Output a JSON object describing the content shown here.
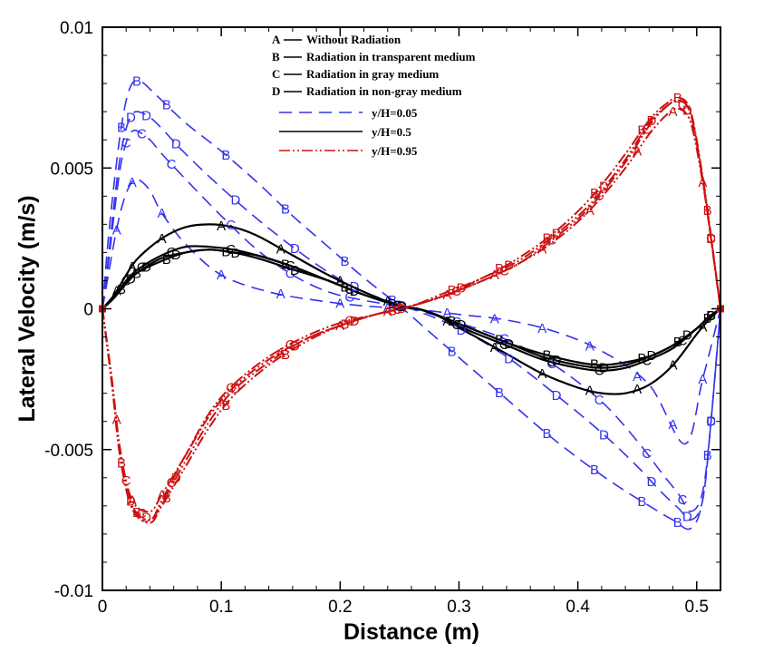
{
  "chart_data": {
    "type": "line",
    "title": "",
    "xlabel": "Distance (m)",
    "ylabel": "Lateral Velocity (m/s)",
    "xlim": [
      0,
      0.52
    ],
    "ylim": [
      -0.01,
      0.01
    ],
    "x_ticks": [
      "0",
      "0.1",
      "0.2",
      "0.3",
      "0.4",
      "0.5"
    ],
    "x_tick_values": [
      0,
      0.1,
      0.2,
      0.3,
      0.4,
      0.5
    ],
    "y_ticks": [
      "0.01",
      "0.005",
      "0",
      "-0.005",
      "-0.01"
    ],
    "y_tick_values": [
      0.01,
      0.005,
      0,
      -0.005,
      -0.01
    ],
    "legend_cases": [
      {
        "marker": "A",
        "label": "Without Radiation"
      },
      {
        "marker": "B",
        "label": "Radiation in transparent medium"
      },
      {
        "marker": "C",
        "label": "Radiation in gray medium"
      },
      {
        "marker": "D",
        "label": "Radiation in non-gray medium"
      }
    ],
    "legend_positions": [
      {
        "label": "y/H=0.05",
        "color": "#3333ee",
        "style": "dashed"
      },
      {
        "label": "y/H=0.5",
        "color": "#000000",
        "style": "solid"
      },
      {
        "label": "y/H=0.95",
        "color": "#cc1111",
        "style": "dashdot"
      }
    ],
    "series": [
      {
        "name": "A y/H=0.05",
        "group": "blue",
        "marker": "A",
        "x": [
          0,
          0.005,
          0.01,
          0.015,
          0.02,
          0.025,
          0.03,
          0.04,
          0.05,
          0.07,
          0.1,
          0.14,
          0.18,
          0.22,
          0.26,
          0.3,
          0.34,
          0.38,
          0.42,
          0.46,
          0.49,
          0.505,
          0.52
        ],
        "y": [
          0,
          0.0012,
          0.0024,
          0.0034,
          0.0041,
          0.0045,
          0.0046,
          0.0042,
          0.0034,
          0.0023,
          0.0012,
          0.0006,
          0.0003,
          0.0001,
          0,
          -0.0002,
          -0.0004,
          -0.0008,
          -0.0015,
          -0.0027,
          -0.0048,
          -0.0025,
          0
        ]
      },
      {
        "name": "B y/H=0.05",
        "group": "blue",
        "marker": "B",
        "x": [
          0,
          0.005,
          0.01,
          0.015,
          0.02,
          0.025,
          0.03,
          0.035,
          0.04,
          0.05,
          0.07,
          0.1,
          0.13,
          0.16,
          0.19,
          0.22,
          0.25,
          0.28,
          0.31,
          0.34,
          0.37,
          0.4,
          0.43,
          0.46,
          0.48,
          0.495,
          0.505,
          0.512,
          0.52
        ],
        "y": [
          0,
          0.0025,
          0.0045,
          0.0062,
          0.0074,
          0.008,
          0.0081,
          0.008,
          0.0078,
          0.0074,
          0.0066,
          0.0056,
          0.0045,
          0.0033,
          0.0022,
          0.0011,
          0.0001,
          -0.001,
          -0.0021,
          -0.0032,
          -0.0043,
          -0.0053,
          -0.0062,
          -0.007,
          -0.0075,
          -0.0078,
          -0.0068,
          -0.004,
          0
        ]
      },
      {
        "name": "C y/H=0.05",
        "group": "blue",
        "marker": "C",
        "x": [
          0,
          0.005,
          0.01,
          0.015,
          0.02,
          0.025,
          0.03,
          0.04,
          0.05,
          0.07,
          0.1,
          0.13,
          0.16,
          0.19,
          0.22,
          0.26,
          0.3,
          0.34,
          0.38,
          0.42,
          0.45,
          0.47,
          0.485,
          0.495,
          0.505,
          0.512,
          0.52
        ],
        "y": [
          0,
          0.0016,
          0.0034,
          0.005,
          0.0059,
          0.0063,
          0.0063,
          0.006,
          0.0055,
          0.0046,
          0.0033,
          0.0021,
          0.0012,
          0.0006,
          0.0003,
          0,
          -0.0005,
          -0.0011,
          -0.002,
          -0.0033,
          -0.0047,
          -0.0058,
          -0.0066,
          -0.0072,
          -0.0065,
          -0.004,
          0
        ]
      },
      {
        "name": "D y/H=0.05",
        "group": "blue",
        "marker": "D",
        "x": [
          0,
          0.005,
          0.01,
          0.015,
          0.02,
          0.025,
          0.03,
          0.04,
          0.05,
          0.07,
          0.1,
          0.13,
          0.16,
          0.19,
          0.22,
          0.26,
          0.3,
          0.34,
          0.38,
          0.42,
          0.45,
          0.47,
          0.485,
          0.495,
          0.505,
          0.512,
          0.52
        ],
        "y": [
          0,
          0.0018,
          0.0038,
          0.0054,
          0.0064,
          0.0069,
          0.007,
          0.0068,
          0.0064,
          0.0055,
          0.0043,
          0.0032,
          0.0022,
          0.0013,
          0.0006,
          0,
          -0.0007,
          -0.0017,
          -0.003,
          -0.0044,
          -0.0056,
          -0.0065,
          -0.0071,
          -0.0075,
          -0.0068,
          -0.004,
          0
        ]
      },
      {
        "name": "A y/H=0.5",
        "group": "black",
        "marker": "A",
        "x": [
          0,
          0.01,
          0.02,
          0.03,
          0.05,
          0.07,
          0.09,
          0.11,
          0.13,
          0.16,
          0.19,
          0.22,
          0.25,
          0.265,
          0.28,
          0.31,
          0.34,
          0.37,
          0.4,
          0.42,
          0.44,
          0.46,
          0.48,
          0.5,
          0.51,
          0.52
        ],
        "y": [
          0,
          0.0005,
          0.0012,
          0.0018,
          0.0025,
          0.0029,
          0.003,
          0.0029,
          0.0026,
          0.0019,
          0.0012,
          0.0006,
          0.0001,
          0,
          -0.0002,
          -0.0009,
          -0.0016,
          -0.0023,
          -0.0028,
          -0.003,
          -0.003,
          -0.0027,
          -0.002,
          -0.0009,
          -0.0004,
          0
        ]
      },
      {
        "name": "B y/H=0.5",
        "group": "black",
        "marker": "B",
        "x": [
          0,
          0.01,
          0.02,
          0.03,
          0.05,
          0.07,
          0.09,
          0.11,
          0.13,
          0.16,
          0.19,
          0.22,
          0.25,
          0.265,
          0.28,
          0.31,
          0.34,
          0.37,
          0.4,
          0.42,
          0.44,
          0.46,
          0.48,
          0.5,
          0.51,
          0.52
        ],
        "y": [
          0,
          0.0004,
          0.0009,
          0.0013,
          0.0017,
          0.002,
          0.0021,
          0.002,
          0.0019,
          0.0015,
          0.001,
          0.0005,
          0.0001,
          0,
          -0.0002,
          -0.0007,
          -0.0012,
          -0.0016,
          -0.0019,
          -0.002,
          -0.0019,
          -0.0017,
          -0.0013,
          -0.0007,
          -0.0003,
          0
        ]
      },
      {
        "name": "C y/H=0.5",
        "group": "black",
        "marker": "C",
        "x": [
          0,
          0.01,
          0.02,
          0.03,
          0.05,
          0.07,
          0.09,
          0.11,
          0.13,
          0.16,
          0.19,
          0.22,
          0.25,
          0.265,
          0.28,
          0.31,
          0.34,
          0.37,
          0.4,
          0.42,
          0.44,
          0.46,
          0.48,
          0.5,
          0.51,
          0.52
        ],
        "y": [
          0,
          0.0004,
          0.001,
          0.0014,
          0.0019,
          0.0022,
          0.0022,
          0.0021,
          0.0019,
          0.0015,
          0.001,
          0.0005,
          0.0001,
          0,
          -0.0002,
          -0.0008,
          -0.0013,
          -0.0018,
          -0.0021,
          -0.0022,
          -0.0021,
          -0.0018,
          -0.0014,
          -0.0007,
          -0.0003,
          0
        ]
      },
      {
        "name": "D y/H=0.5",
        "group": "black",
        "marker": "D",
        "x": [
          0,
          0.01,
          0.02,
          0.03,
          0.05,
          0.07,
          0.09,
          0.11,
          0.13,
          0.16,
          0.19,
          0.22,
          0.25,
          0.265,
          0.28,
          0.31,
          0.34,
          0.37,
          0.4,
          0.42,
          0.44,
          0.46,
          0.48,
          0.5,
          0.51,
          0.52
        ],
        "y": [
          0,
          0.0004,
          0.0009,
          0.0013,
          0.0018,
          0.002,
          0.0021,
          0.002,
          0.0018,
          0.0014,
          0.001,
          0.0005,
          0.0001,
          0,
          -0.0002,
          -0.0007,
          -0.0012,
          -0.0017,
          -0.002,
          -0.0021,
          -0.002,
          -0.0017,
          -0.0013,
          -0.0007,
          -0.0003,
          0
        ]
      },
      {
        "name": "A y/H=0.95",
        "group": "red",
        "marker": "A",
        "x": [
          0,
          0.008,
          0.015,
          0.025,
          0.04,
          0.05,
          0.07,
          0.09,
          0.11,
          0.14,
          0.17,
          0.2,
          0.23,
          0.26,
          0.29,
          0.32,
          0.35,
          0.38,
          0.41,
          0.44,
          0.46,
          0.475,
          0.485,
          0.495,
          0.505,
          0.512,
          0.52
        ],
        "y": [
          0,
          -0.0025,
          -0.005,
          -0.0068,
          -0.0072,
          -0.0066,
          -0.0052,
          -0.0038,
          -0.0028,
          -0.0018,
          -0.0011,
          -0.0006,
          -0.0002,
          0.0001,
          0.0005,
          0.001,
          0.0016,
          0.0024,
          0.0035,
          0.005,
          0.0062,
          0.0069,
          0.0071,
          0.0066,
          0.0045,
          0.0025,
          0
        ]
      },
      {
        "name": "B y/H=0.95",
        "group": "red",
        "marker": "B",
        "x": [
          0,
          0.008,
          0.015,
          0.025,
          0.04,
          0.05,
          0.07,
          0.09,
          0.11,
          0.14,
          0.17,
          0.2,
          0.23,
          0.26,
          0.29,
          0.32,
          0.35,
          0.38,
          0.41,
          0.44,
          0.46,
          0.475,
          0.485,
          0.495,
          0.505,
          0.512,
          0.52
        ],
        "y": [
          0,
          -0.0027,
          -0.0053,
          -0.0071,
          -0.0076,
          -0.007,
          -0.0056,
          -0.0042,
          -0.0031,
          -0.002,
          -0.0012,
          -0.0006,
          -0.0002,
          0.0001,
          0.0006,
          0.0011,
          0.0018,
          0.0027,
          0.0039,
          0.0055,
          0.0067,
          0.0073,
          0.0075,
          0.007,
          0.0047,
          0.0026,
          0
        ]
      },
      {
        "name": "C y/H=0.95",
        "group": "red",
        "marker": "C",
        "x": [
          0,
          0.008,
          0.015,
          0.025,
          0.04,
          0.05,
          0.07,
          0.09,
          0.11,
          0.14,
          0.17,
          0.2,
          0.23,
          0.26,
          0.29,
          0.32,
          0.35,
          0.38,
          0.41,
          0.44,
          0.46,
          0.475,
          0.485,
          0.495,
          0.505,
          0.512,
          0.52
        ],
        "y": [
          0,
          -0.0026,
          -0.0052,
          -0.007,
          -0.0075,
          -0.0068,
          -0.0052,
          -0.0037,
          -0.0027,
          -0.0017,
          -0.001,
          -0.0005,
          -0.0002,
          0.0001,
          0.0005,
          0.001,
          0.0016,
          0.0025,
          0.0036,
          0.0052,
          0.0065,
          0.0072,
          0.0074,
          0.0069,
          0.0046,
          0.0025,
          0
        ]
      },
      {
        "name": "D y/H=0.95",
        "group": "red",
        "marker": "D",
        "x": [
          0,
          0.008,
          0.015,
          0.025,
          0.04,
          0.05,
          0.07,
          0.09,
          0.11,
          0.14,
          0.17,
          0.2,
          0.23,
          0.26,
          0.29,
          0.32,
          0.35,
          0.38,
          0.41,
          0.44,
          0.46,
          0.475,
          0.485,
          0.495,
          0.505,
          0.512,
          0.52
        ],
        "y": [
          0,
          -0.0026,
          -0.0052,
          -0.007,
          -0.0075,
          -0.0069,
          -0.0054,
          -0.004,
          -0.0029,
          -0.0019,
          -0.0011,
          -0.0006,
          -0.0002,
          0.0001,
          0.0005,
          0.0011,
          0.0017,
          0.0026,
          0.0037,
          0.0053,
          0.0066,
          0.0072,
          0.0074,
          0.0069,
          0.0046,
          0.0025,
          0
        ]
      }
    ],
    "groups": {
      "blue": {
        "color": "#3333ee",
        "dash": "14,8",
        "width": 1.6
      },
      "black": {
        "color": "#000000",
        "dash": "",
        "width": 2.2
      },
      "red": {
        "color": "#cc1111",
        "dash": "12,3,2,3,2,3",
        "width": 2
      }
    }
  }
}
